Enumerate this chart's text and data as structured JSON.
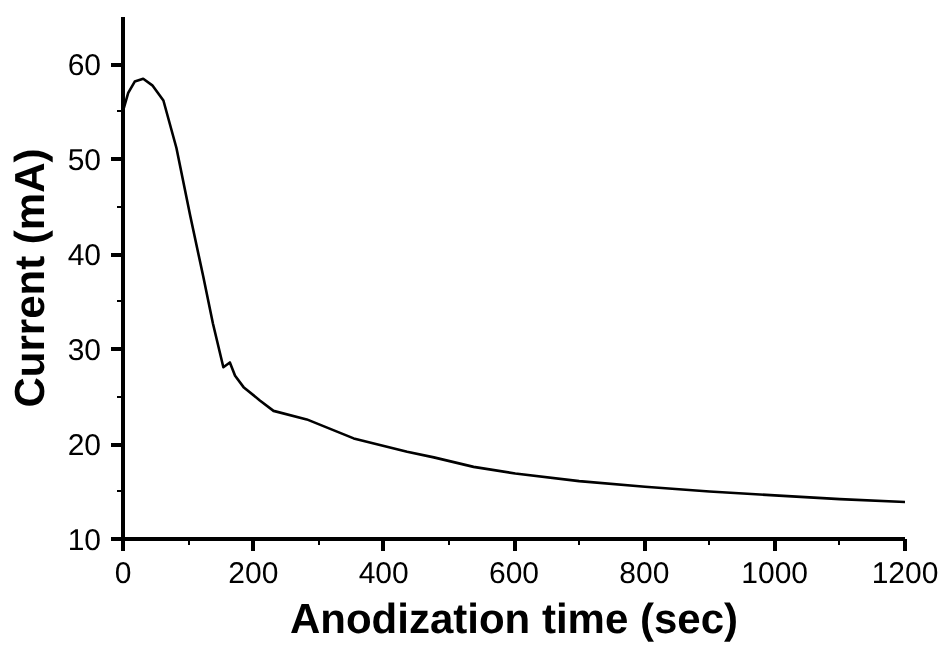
{
  "chart_data": {
    "type": "line",
    "xlabel": "Anodization time (sec)",
    "ylabel": "Current (mA)",
    "x": [
      0,
      8,
      18,
      31,
      45,
      62,
      82,
      103,
      123,
      138,
      154,
      164,
      172,
      185,
      210,
      231,
      282,
      354,
      436,
      477,
      538,
      602,
      700,
      801,
      900,
      1000,
      1100,
      1200
    ],
    "series": [
      {
        "color": "#000000",
        "values": [
          55.1,
          57.0,
          58.2,
          58.5,
          57.8,
          56.2,
          51.2,
          44.1,
          37.7,
          32.7,
          28.1,
          28.6,
          27.2,
          26.0,
          24.6,
          23.5,
          22.6,
          20.6,
          19.2,
          18.6,
          17.6,
          16.9,
          16.1,
          15.5,
          15.0,
          14.6,
          14.2,
          13.9
        ]
      }
    ],
    "xlim": [
      0,
      1200
    ],
    "ylim": [
      10,
      65
    ],
    "xticks": [
      0,
      200,
      400,
      600,
      800,
      1000,
      1200
    ],
    "yticks": [
      10,
      20,
      30,
      40,
      50,
      60
    ],
    "grid": false,
    "marker": "none",
    "line_style": "solid"
  }
}
